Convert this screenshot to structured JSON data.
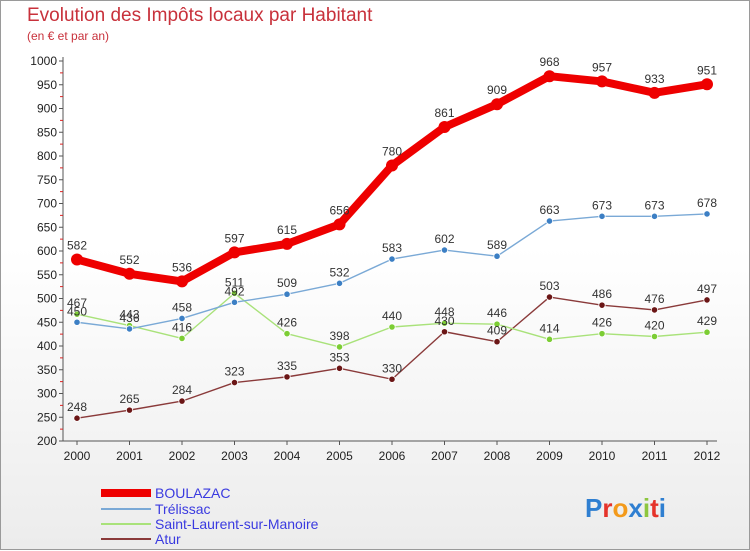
{
  "page": {
    "title": "Evolution des Impôts locaux par Habitant",
    "subtitle": "(en € et par an)",
    "brand": {
      "letters": [
        "P",
        "r",
        "o",
        "x",
        "i",
        "t",
        "i"
      ],
      "colors": [
        "#2f7fd1",
        "#e5332a",
        "#f39a1b",
        "#2f7fd1",
        "#8dc63f",
        "#e5332a",
        "#2f7fd1"
      ]
    }
  },
  "chart_data": {
    "type": "line",
    "title": "Evolution des Impôts locaux par Habitant",
    "subtitle": "(en € et par an)",
    "xlabel": "",
    "ylabel": "",
    "x": [
      "2000",
      "2001",
      "2002",
      "2003",
      "2004",
      "2005",
      "2006",
      "2007",
      "2008",
      "2009",
      "2010",
      "2011",
      "2012"
    ],
    "ylim": [
      200,
      1000
    ],
    "yticks": [
      200,
      250,
      300,
      350,
      400,
      450,
      500,
      550,
      600,
      650,
      700,
      750,
      800,
      850,
      900,
      950,
      1000
    ],
    "grid": false,
    "legend": "bottom-left",
    "series": [
      {
        "name": "BOULAZAC",
        "color": "#ee0000",
        "marker": "#ee0000",
        "values": [
          582,
          552,
          536,
          597,
          615,
          656,
          780,
          861,
          909,
          968,
          957,
          933,
          951
        ]
      },
      {
        "name": "Trélissac",
        "color": "#7aa9d6",
        "marker": "#3c7fc4",
        "values": [
          450,
          436,
          458,
          492,
          509,
          532,
          583,
          602,
          589,
          663,
          673,
          673,
          678
        ]
      },
      {
        "name": "Saint-Laurent-sur-Manoire",
        "color": "#a9e27a",
        "marker": "#7ccd34",
        "values": [
          467,
          443,
          416,
          511,
          426,
          398,
          440,
          448,
          446,
          414,
          426,
          420,
          429
        ]
      },
      {
        "name": "Atur",
        "color": "#8a3a3a",
        "marker": "#6b1616",
        "values": [
          248,
          265,
          284,
          323,
          335,
          353,
          330,
          430,
          409,
          503,
          486,
          476,
          497
        ]
      }
    ]
  }
}
